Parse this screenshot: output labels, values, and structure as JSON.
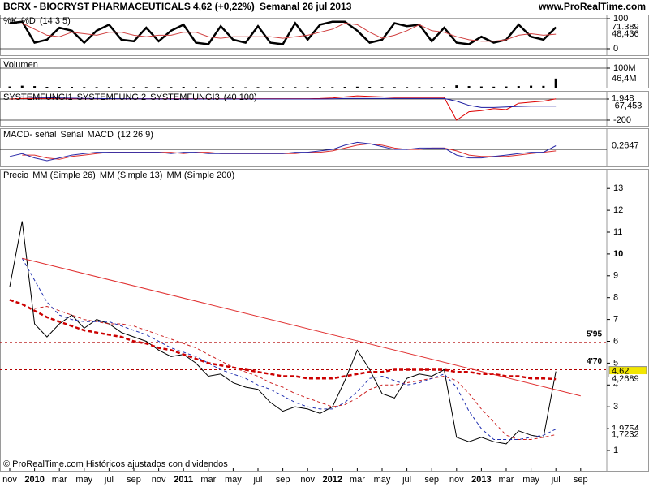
{
  "header": {
    "symbol": "BCRX - BIOCRYST PHARMACEUTICALS",
    "price": "4,62 (+0,22%)",
    "period": "Semanal  26 jul 2013",
    "site": "www.ProRealTime.com"
  },
  "footer": "© ProRealTime.com Históricos ajustados con dividendos",
  "chart_data": [
    {
      "type": "line",
      "params": "(14 3 5)",
      "ylim": [
        -21.6,
        113.5
      ],
      "yticks": [
        0,
        100
      ],
      "series": [
        {
          "name": "%K",
          "color": "#000000",
          "style": "thick",
          "values": [
            85,
            90,
            20,
            30,
            70,
            60,
            20,
            60,
            80,
            30,
            25,
            70,
            25,
            60,
            80,
            20,
            15,
            75,
            30,
            20,
            75,
            20,
            15,
            85,
            30,
            80,
            90,
            90,
            60,
            20,
            30,
            85,
            75,
            80,
            25,
            70,
            20,
            15,
            40,
            20,
            30,
            80,
            40,
            30,
            71.389,
            null,
            null
          ]
        },
        {
          "name": "%D",
          "color": "#d04040",
          "style": "solid",
          "values": [
            null,
            85,
            65,
            45,
            40,
            55,
            50,
            45,
            55,
            55,
            45,
            40,
            45,
            45,
            55,
            55,
            40,
            35,
            40,
            40,
            40,
            40,
            35,
            40,
            45,
            55,
            65,
            85,
            80,
            55,
            35,
            45,
            60,
            80,
            60,
            55,
            40,
            30,
            25,
            25,
            30,
            45,
            50,
            45,
            48.436,
            null,
            null
          ]
        }
      ],
      "annotations": [
        {
          "value": 71.389,
          "label": "71,389",
          "color": "#000000"
        },
        {
          "value": 48.436,
          "label": "48,436",
          "color": "#c00000"
        }
      ]
    },
    {
      "type": "bar",
      "title": "Volumen",
      "ylim": [
        0,
        150
      ],
      "yticks": [
        {
          "value": 100,
          "label": "100M"
        }
      ],
      "series": [
        {
          "name": "Volumen",
          "color": "#000000",
          "values": [
            6,
            10,
            8,
            4,
            4,
            4,
            3,
            3,
            3,
            3,
            3,
            3,
            3,
            3,
            4,
            3,
            3,
            3,
            3,
            2,
            3,
            3,
            3,
            3,
            3,
            3,
            3,
            4,
            5,
            4,
            3,
            3,
            3,
            3,
            3,
            3,
            12,
            8,
            6,
            5,
            6,
            8,
            10,
            9,
            46.4,
            null,
            null
          ]
        }
      ],
      "annotations": [
        {
          "value": 46.4,
          "label": "46,4M",
          "color": "#000000"
        }
      ]
    },
    {
      "type": "line",
      "legend_prefix": "SYSTEMFUNGI1",
      "params": "(40 100)",
      "ylim": [
        -254,
        77
      ],
      "yticks": [
        0,
        -200
      ],
      "series": [
        {
          "name": "SYSTEMFUNGI2",
          "color": "#dd0000",
          "style": "solid",
          "values": [
            0,
            5,
            5,
            5,
            3,
            3,
            3,
            3,
            3,
            3,
            3,
            3,
            3,
            3,
            3,
            3,
            3,
            3,
            3,
            3,
            3,
            3,
            3,
            3,
            3,
            5,
            10,
            20,
            30,
            25,
            20,
            15,
            15,
            15,
            15,
            15,
            -200,
            -120,
            -110,
            -90,
            -100,
            -40,
            -30,
            -20,
            1.948,
            null,
            null
          ]
        },
        {
          "name": "SYSTEMFUNGI3",
          "color": "#1a1aa0",
          "style": "solid",
          "values": [
            20,
            20,
            15,
            12,
            10,
            8,
            6,
            5,
            4,
            3,
            2,
            2,
            1,
            0,
            0,
            0,
            0,
            0,
            0,
            0,
            0,
            0,
            0,
            0,
            0,
            0,
            2,
            5,
            5,
            5,
            5,
            5,
            5,
            5,
            5,
            5,
            -20,
            -60,
            -80,
            -80,
            -75,
            -70,
            -68,
            -67,
            -67.453,
            null,
            null
          ]
        }
      ],
      "annotations": [
        {
          "value": 1.948,
          "label": "1,948",
          "color": "#c00000"
        },
        {
          "value": -67.453,
          "label": "-67,453",
          "color": "#1a1aa0"
        }
      ]
    },
    {
      "type": "line",
      "legend_prefix": "MACD- señal",
      "params": "(12 26 9)",
      "ylim": [
        -1.2,
        1.5
      ],
      "zero_line": true,
      "series": [
        {
          "name": "Señal",
          "color": "#dd3030",
          "style": "solid",
          "values": [
            null,
            -0.4,
            -0.4,
            -0.6,
            -0.7,
            -0.5,
            -0.4,
            -0.3,
            -0.2,
            -0.2,
            -0.2,
            -0.2,
            -0.2,
            -0.2,
            -0.3,
            -0.2,
            -0.2,
            -0.3,
            -0.3,
            -0.3,
            -0.3,
            -0.3,
            -0.3,
            -0.3,
            -0.2,
            -0.2,
            -0.1,
            0.1,
            0.3,
            0.4,
            0.3,
            0.1,
            0.0,
            0.0,
            0.1,
            0.1,
            -0.1,
            -0.4,
            -0.5,
            -0.5,
            -0.5,
            -0.4,
            -0.3,
            -0.2,
            -0.1,
            null,
            null
          ]
        },
        {
          "name": "MACD",
          "color": "#2a2aa8",
          "style": "solid",
          "values": [
            -0.5,
            -0.3,
            -0.6,
            -0.8,
            -0.6,
            -0.4,
            -0.3,
            -0.2,
            -0.2,
            -0.2,
            -0.2,
            -0.2,
            -0.2,
            -0.3,
            -0.2,
            -0.2,
            -0.3,
            -0.3,
            -0.3,
            -0.3,
            -0.3,
            -0.3,
            -0.3,
            -0.2,
            -0.2,
            -0.1,
            0.0,
            0.3,
            0.5,
            0.4,
            0.2,
            0.0,
            0.0,
            0.1,
            0.1,
            0.1,
            -0.4,
            -0.6,
            -0.6,
            -0.5,
            -0.4,
            -0.3,
            -0.2,
            -0.2,
            0.2647,
            null,
            null
          ]
        }
      ],
      "annotations": [
        {
          "value": 0.2647,
          "label": "0,2647",
          "color": "#1a8a1a"
        }
      ]
    },
    {
      "type": "line",
      "ylim": [
        0.07,
        13.9
      ],
      "yticks": [
        1,
        2,
        3,
        4,
        5,
        6,
        7,
        8,
        9,
        10,
        11,
        12,
        13
      ],
      "categories": [
        "nov",
        null,
        "2010",
        null,
        "mar",
        null,
        "may",
        null,
        "jul",
        null,
        "sep",
        null,
        "nov",
        null,
        "2011",
        null,
        "mar",
        null,
        "may",
        null,
        "jul",
        null,
        "sep",
        null,
        "nov",
        null,
        "2012",
        null,
        "mar",
        null,
        "may",
        null,
        "jul",
        null,
        "sep",
        null,
        "nov",
        null,
        "2013",
        null,
        "mar",
        null,
        "may",
        null,
        "jul",
        null,
        "sep"
      ],
      "series": [
        {
          "name": "Precio",
          "color": "#000000",
          "style": "solid",
          "values": [
            8.5,
            11.5,
            6.8,
            6.2,
            6.8,
            7.2,
            6.6,
            7.0,
            6.8,
            6.4,
            6.2,
            6.0,
            5.6,
            5.3,
            5.4,
            5.0,
            4.4,
            4.5,
            4.1,
            3.9,
            3.8,
            3.2,
            2.8,
            3.0,
            2.9,
            2.7,
            3.0,
            4.2,
            5.6,
            4.7,
            3.6,
            3.4,
            4.3,
            4.5,
            4.4,
            4.7,
            1.6,
            1.4,
            1.6,
            1.4,
            1.3,
            1.9,
            1.7,
            1.6,
            4.62,
            null,
            null
          ]
        },
        {
          "name": "MM (Simple 26)",
          "color": "#cc2020",
          "style": "dashed",
          "values": [
            null,
            null,
            7.5,
            7.6,
            7.4,
            7.2,
            7.0,
            6.9,
            6.8,
            6.8,
            6.7,
            6.5,
            6.3,
            6.1,
            5.9,
            5.7,
            5.4,
            5.1,
            4.8,
            4.6,
            4.4,
            4.1,
            3.9,
            3.6,
            3.4,
            3.2,
            3.0,
            3.1,
            3.4,
            3.8,
            4.0,
            4.0,
            4.1,
            4.2,
            4.3,
            4.4,
            4.2,
            3.6,
            2.9,
            2.3,
            1.7,
            1.5,
            1.5,
            1.6,
            1.7232,
            null,
            null
          ]
        },
        {
          "name": "MM (Simple 13)",
          "color": "#2030b0",
          "style": "dashed",
          "values": [
            null,
            9.8,
            8.8,
            7.8,
            7.2,
            7.0,
            6.9,
            6.9,
            6.9,
            6.7,
            6.5,
            6.3,
            6.0,
            5.7,
            5.5,
            5.3,
            5.0,
            4.7,
            4.5,
            4.3,
            4.0,
            3.8,
            3.5,
            3.2,
            3.0,
            2.9,
            2.9,
            3.2,
            3.7,
            4.3,
            4.4,
            4.2,
            4.0,
            4.1,
            4.3,
            4.5,
            3.9,
            2.8,
            2.0,
            1.5,
            1.5,
            1.5,
            1.6,
            1.7,
            1.9754,
            null,
            null
          ]
        },
        {
          "name": "MM (Simple 200)",
          "color": "#cc0000",
          "style": "thick-dashed",
          "values": [
            7.9,
            7.7,
            7.4,
            7.1,
            6.9,
            6.7,
            6.5,
            6.4,
            6.3,
            6.2,
            6.0,
            5.9,
            5.7,
            5.6,
            5.4,
            5.2,
            5.0,
            4.9,
            4.8,
            4.7,
            4.6,
            4.5,
            4.4,
            4.4,
            4.3,
            4.3,
            4.3,
            4.4,
            4.5,
            4.6,
            4.6,
            4.7,
            4.7,
            4.7,
            4.7,
            4.7,
            4.6,
            4.6,
            4.5,
            4.5,
            4.4,
            4.4,
            4.3,
            4.3,
            4.2689,
            null,
            null
          ]
        }
      ],
      "hlines": [
        {
          "value": 5.95,
          "label": "5'95",
          "color": "#b00000"
        },
        {
          "value": 4.7,
          "label": "4'70",
          "color": "#b00000"
        }
      ],
      "trendline": {
        "x0": 1,
        "y0": 9.8,
        "x1": 46,
        "y1": 3.5,
        "color": "#e03030"
      },
      "annotations": [
        {
          "value": 4.62,
          "label": "4,62",
          "color": "#000000",
          "background": "#f2e600"
        },
        {
          "value": 4.2689,
          "label": "4,2689",
          "color": "#c00000"
        },
        {
          "value": 1.9754,
          "label": "1,9754",
          "color": "#000000"
        },
        {
          "value": 1.7232,
          "label": "1,7232",
          "color": "#000000"
        }
      ]
    }
  ]
}
